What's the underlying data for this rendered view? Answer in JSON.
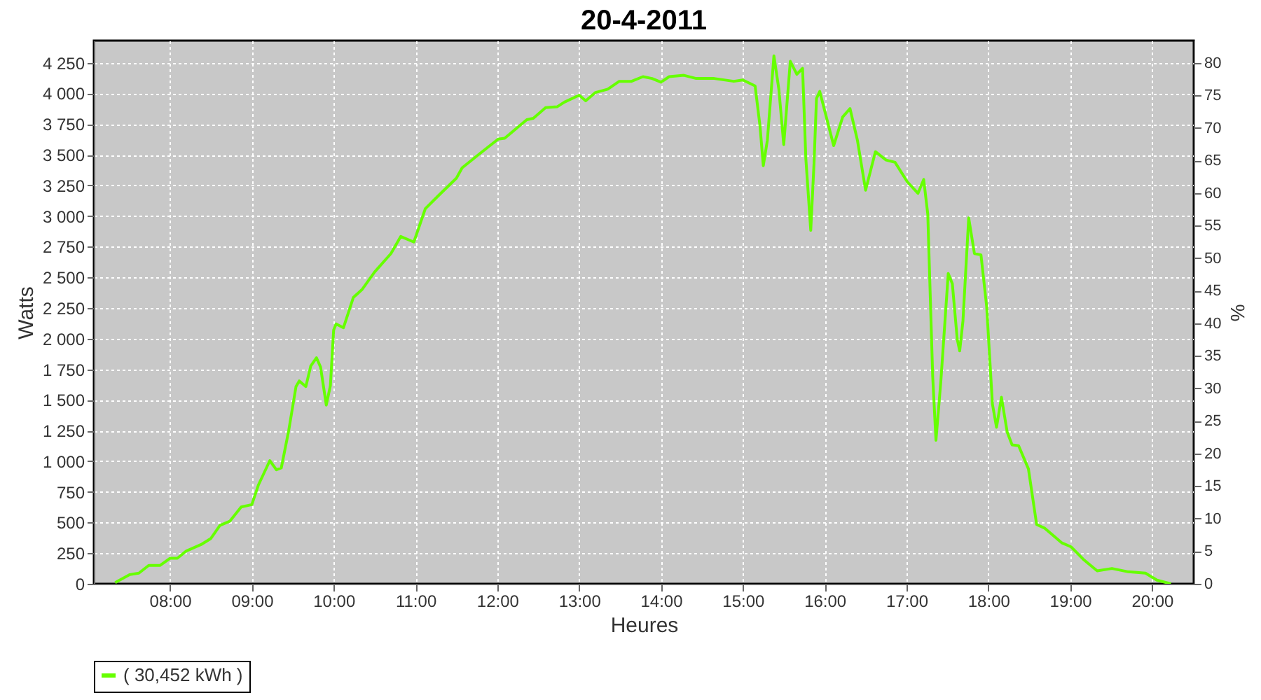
{
  "chart_data": {
    "type": "line",
    "title": "20-4-2011",
    "xlabel": "Heures",
    "ylabel": "Watts",
    "y2label": "%",
    "x": [
      7.33,
      7.51,
      7.62,
      7.74,
      7.88,
      8.0,
      8.09,
      8.2,
      8.38,
      8.5,
      8.61,
      8.73,
      8.87,
      9.0,
      9.08,
      9.22,
      9.3,
      9.36,
      9.45,
      9.54,
      9.58,
      9.66,
      9.72,
      9.79,
      9.84,
      9.91,
      9.96,
      10.0,
      10.03,
      10.12,
      10.24,
      10.35,
      10.5,
      10.7,
      10.82,
      10.98,
      11.12,
      11.28,
      11.5,
      11.57,
      11.78,
      12.01,
      12.09,
      12.36,
      12.44,
      12.59,
      12.73,
      12.82,
      13.0,
      13.08,
      13.2,
      13.35,
      13.49,
      13.64,
      13.78,
      13.89,
      14.0,
      14.1,
      14.28,
      14.43,
      14.65,
      14.89,
      15.0,
      15.15,
      15.21,
      15.25,
      15.3,
      15.38,
      15.44,
      15.5,
      15.58,
      15.66,
      15.73,
      15.77,
      15.83,
      15.87,
      15.9,
      15.94,
      16.11,
      16.22,
      16.31,
      16.4,
      16.5,
      16.62,
      16.75,
      16.86,
      17.01,
      17.14,
      17.21,
      17.26,
      17.32,
      17.36,
      17.42,
      17.51,
      17.56,
      17.62,
      17.65,
      17.69,
      17.76,
      17.83,
      17.91,
      17.98,
      18.05,
      18.1,
      18.16,
      18.23,
      18.29,
      18.37,
      18.49,
      18.59,
      18.69,
      18.9,
      19.01,
      19.16,
      19.33,
      19.51,
      19.71,
      19.92,
      20.06,
      20.23
    ],
    "series": [
      {
        "name": "( 30,452 kWh )",
        "color": "#66ff00",
        "values": [
          10,
          75,
          87,
          150,
          150,
          208,
          208,
          268,
          320,
          370,
          476,
          510,
          627,
          646,
          805,
          1005,
          930,
          945,
          1247,
          1609,
          1655,
          1609,
          1776,
          1844,
          1768,
          1458,
          1617,
          2070,
          2120,
          2089,
          2335,
          2403,
          2543,
          2694,
          2833,
          2788,
          3060,
          3166,
          3309,
          3393,
          3506,
          3627,
          3634,
          3786,
          3797,
          3884,
          3891,
          3929,
          3986,
          3940,
          4008,
          4035,
          4099,
          4099,
          4137,
          4122,
          4092,
          4137,
          4148,
          4122,
          4122,
          4099,
          4110,
          4061,
          3733,
          3411,
          3619,
          4307,
          4035,
          3582,
          4262,
          4156,
          4205,
          3468,
          2883,
          3430,
          3959,
          4016,
          3574,
          3808,
          3876,
          3619,
          3211,
          3525,
          3457,
          3438,
          3279,
          3185,
          3298,
          3015,
          1693,
          1171,
          1655,
          2531,
          2448,
          1995,
          1900,
          2146,
          2985,
          2694,
          2683,
          2259,
          1466,
          1277,
          1522,
          1239,
          1133,
          1126,
          937,
          484,
          453,
          333,
          302,
          200,
          106,
          125,
          98,
          87,
          30,
          0
        ]
      }
    ],
    "xlim": [
      7.07,
      20.51
    ],
    "xticks": [
      {
        "value": 8,
        "label": "08:00"
      },
      {
        "value": 9,
        "label": "09:00"
      },
      {
        "value": 10,
        "label": "10:00"
      },
      {
        "value": 11,
        "label": "11:00"
      },
      {
        "value": 12,
        "label": "12:00"
      },
      {
        "value": 13,
        "label": "13:00"
      },
      {
        "value": 14,
        "label": "14:00"
      },
      {
        "value": 15,
        "label": "15:00"
      },
      {
        "value": 16,
        "label": "16:00"
      },
      {
        "value": 17,
        "label": "17:00"
      },
      {
        "value": 18,
        "label": "18:00"
      },
      {
        "value": 19,
        "label": "19:00"
      },
      {
        "value": 20,
        "label": "20:00"
      }
    ],
    "ylim": [
      0,
      4431
    ],
    "yticks": [
      0,
      250,
      500,
      750,
      {
        "value": 1000,
        "label": "1 000"
      },
      {
        "value": 1250,
        "label": "1 250"
      },
      {
        "value": 1500,
        "label": "1 500"
      },
      {
        "value": 1750,
        "label": "1 750"
      },
      {
        "value": 2000,
        "label": "2 000"
      },
      {
        "value": 2250,
        "label": "2 250"
      },
      {
        "value": 2500,
        "label": "2 500"
      },
      {
        "value": 2750,
        "label": "2 750"
      },
      {
        "value": 3000,
        "label": "3 000"
      },
      {
        "value": 3250,
        "label": "3 250"
      },
      {
        "value": 3500,
        "label": "3 500"
      },
      {
        "value": 3750,
        "label": "3 750"
      },
      {
        "value": 4000,
        "label": "4 000"
      },
      {
        "value": 4250,
        "label": "4 250"
      }
    ],
    "y2lim": [
      0,
      83.4
    ],
    "y2ticks": [
      0,
      5,
      10,
      15,
      20,
      25,
      30,
      35,
      40,
      45,
      50,
      55,
      60,
      65,
      70,
      75,
      80
    ],
    "grid": true,
    "legend": "bottom",
    "line_style": "solid"
  }
}
